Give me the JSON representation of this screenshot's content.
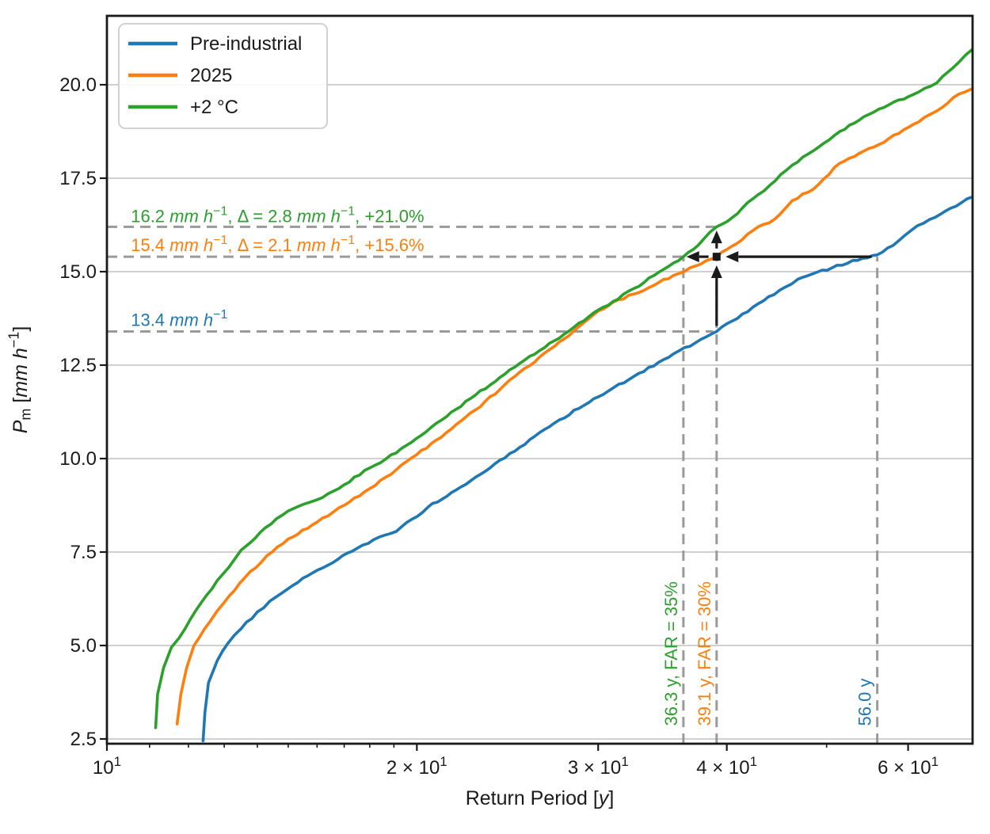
{
  "chart_data": {
    "type": "line",
    "xscale": "log",
    "xlabel": "Return Period [*y*]",
    "ylabel": "*P*_{m} [*mm h*^{−1}]",
    "xlim": [
      10,
      69.3
    ],
    "ylim": [
      2.37,
      21.84
    ],
    "grid": "horizontal",
    "grid_color": "#c9c9c9",
    "x_major_ticks": [
      {
        "v": 10,
        "label": "10^{1}"
      },
      {
        "v": 20,
        "label": "2 × 10^{1}"
      },
      {
        "v": 30,
        "label": "3 × 10^{1}"
      },
      {
        "v": 40,
        "label": "4 × 10^{1}"
      },
      {
        "v": 60,
        "label": "6 × 10^{1}"
      }
    ],
    "x_minor_ticks": [
      11,
      12,
      13,
      14,
      15,
      16,
      17,
      18,
      19,
      50
    ],
    "y_ticks": [
      {
        "v": 2.5,
        "label": "2.5"
      },
      {
        "v": 5.0,
        "label": "5.0"
      },
      {
        "v": 7.5,
        "label": "7.5"
      },
      {
        "v": 10.0,
        "label": "10.0"
      },
      {
        "v": 12.5,
        "label": "12.5"
      },
      {
        "v": 15.0,
        "label": "15.0"
      },
      {
        "v": 17.5,
        "label": "17.5"
      },
      {
        "v": 20.0,
        "label": "20.0"
      }
    ],
    "legend": {
      "position": "upper left",
      "items": [
        {
          "label": "Pre-industrial",
          "color": "#1f77b4"
        },
        {
          "label": "2025",
          "color": "#ff7f0e"
        },
        {
          "label": "+2 °C",
          "color": "#2ca02c"
        }
      ]
    },
    "series": [
      {
        "name": "Pre-industrial",
        "color": "#1f77b4",
        "points": [
          [
            12.4,
            2.45
          ],
          [
            12.45,
            3.2
          ],
          [
            12.55,
            4.0
          ],
          [
            12.8,
            4.6
          ],
          [
            13.1,
            5.05
          ],
          [
            13.5,
            5.45
          ],
          [
            14.0,
            5.9
          ],
          [
            14.6,
            6.3
          ],
          [
            15.5,
            6.8
          ],
          [
            16.4,
            7.15
          ],
          [
            17.5,
            7.6
          ],
          [
            18.6,
            7.95
          ],
          [
            19.1,
            8.05
          ],
          [
            20.5,
            8.7
          ],
          [
            22.8,
            9.5
          ],
          [
            24.9,
            10.2
          ],
          [
            27.2,
            10.95
          ],
          [
            29.7,
            11.6
          ],
          [
            32.5,
            12.2
          ],
          [
            35.5,
            12.8
          ],
          [
            37.3,
            13.1
          ],
          [
            39.1,
            13.4
          ],
          [
            42.4,
            14.05
          ],
          [
            45.0,
            14.5
          ],
          [
            46.9,
            14.8
          ],
          [
            50.6,
            15.1
          ],
          [
            53.0,
            15.3
          ],
          [
            56.0,
            15.45
          ],
          [
            58.0,
            15.7
          ],
          [
            60.4,
            16.1
          ],
          [
            63.0,
            16.4
          ],
          [
            66.0,
            16.7
          ],
          [
            69.3,
            17.0
          ]
        ]
      },
      {
        "name": "2025",
        "color": "#ff7f0e",
        "points": [
          [
            11.7,
            2.9
          ],
          [
            11.8,
            3.7
          ],
          [
            11.95,
            4.4
          ],
          [
            12.15,
            5.0
          ],
          [
            12.6,
            5.65
          ],
          [
            13.0,
            6.15
          ],
          [
            13.6,
            6.8
          ],
          [
            14.3,
            7.4
          ],
          [
            15.0,
            7.85
          ],
          [
            16.0,
            8.3
          ],
          [
            17.0,
            8.75
          ],
          [
            18.0,
            9.2
          ],
          [
            19.1,
            9.7
          ],
          [
            20.9,
            10.5
          ],
          [
            22.8,
            11.3
          ],
          [
            24.9,
            12.2
          ],
          [
            27.2,
            13.0
          ],
          [
            29.7,
            13.85
          ],
          [
            31.0,
            14.18
          ],
          [
            32.5,
            14.4
          ],
          [
            35.5,
            14.9
          ],
          [
            37.3,
            15.15
          ],
          [
            39.1,
            15.4
          ],
          [
            40.9,
            15.75
          ],
          [
            42.4,
            16.1
          ],
          [
            44.5,
            16.4
          ],
          [
            46.3,
            16.9
          ],
          [
            48.5,
            17.2
          ],
          [
            51.5,
            17.9
          ],
          [
            56.2,
            18.4
          ],
          [
            61.4,
            19.0
          ],
          [
            64.0,
            19.3
          ],
          [
            67.2,
            19.75
          ],
          [
            69.3,
            19.9
          ]
        ]
      },
      {
        "name": "+2 °C",
        "color": "#2ca02c",
        "points": [
          [
            11.15,
            2.8
          ],
          [
            11.2,
            3.7
          ],
          [
            11.35,
            4.4
          ],
          [
            11.55,
            4.95
          ],
          [
            11.75,
            5.2
          ],
          [
            12.05,
            5.7
          ],
          [
            12.5,
            6.35
          ],
          [
            12.95,
            6.9
          ],
          [
            13.5,
            7.55
          ],
          [
            14.25,
            8.15
          ],
          [
            15.0,
            8.6
          ],
          [
            16.0,
            8.9
          ],
          [
            17.0,
            9.3
          ],
          [
            18.0,
            9.75
          ],
          [
            19.1,
            10.15
          ],
          [
            20.9,
            10.95
          ],
          [
            22.8,
            11.7
          ],
          [
            24.9,
            12.45
          ],
          [
            27.2,
            13.15
          ],
          [
            29.7,
            13.9
          ],
          [
            31.0,
            14.2
          ],
          [
            32.5,
            14.55
          ],
          [
            34.0,
            14.9
          ],
          [
            36.3,
            15.4
          ],
          [
            37.5,
            15.7
          ],
          [
            38.5,
            16.05
          ],
          [
            39.1,
            16.2
          ],
          [
            40.5,
            16.45
          ],
          [
            42.4,
            16.95
          ],
          [
            44.0,
            17.3
          ],
          [
            46.3,
            17.85
          ],
          [
            48.0,
            18.15
          ],
          [
            51.5,
            18.75
          ],
          [
            56.2,
            19.35
          ],
          [
            61.4,
            19.8
          ],
          [
            64.0,
            20.05
          ],
          [
            67.2,
            20.6
          ],
          [
            69.3,
            20.95
          ]
        ]
      }
    ],
    "annotations": {
      "dash_color": "#9a9a9a",
      "hlines": [
        {
          "y": 16.2,
          "x0": 10,
          "x1": 39.5
        },
        {
          "y": 15.4,
          "x0": 10,
          "x1": 36.4
        },
        {
          "y": 13.4,
          "x0": 10,
          "x1": 38.8
        }
      ],
      "vlines": [
        {
          "x": 36.3,
          "y0": 2.37,
          "y1": 15.4
        },
        {
          "x": 39.1,
          "y0": 2.37,
          "y1": 15.4
        },
        {
          "x": 56.0,
          "y0": 2.37,
          "y1": 15.4
        }
      ],
      "texts": [
        {
          "text": "16.2 *mm h*^{−1}, Δ = 2.8 *mm h*^{−1}, +21.0%",
          "color": "#2ca02c",
          "x": 10.55,
          "y": 16.32,
          "rotate": 0
        },
        {
          "text": "15.4 *mm h*^{−1}, Δ = 2.1 *mm h*^{−1}, +15.6%",
          "color": "#ff7f0e",
          "x": 10.55,
          "y": 15.55,
          "rotate": 0
        },
        {
          "text": "13.4 *mm h*^{−1}",
          "color": "#1f77b4",
          "x": 10.55,
          "y": 13.55,
          "rotate": 0
        },
        {
          "text": "36.3 y, FAR = 35%",
          "color": "#2ca02c",
          "x": 36.3,
          "y": 2.85,
          "rotate": -90
        },
        {
          "text": "39.1 y, FAR = 30%",
          "color": "#ff7f0e",
          "x": 39.1,
          "y": 2.85,
          "rotate": -90
        },
        {
          "text": "56.0 y",
          "color": "#1f77b4",
          "x": 56.0,
          "y": 2.85,
          "rotate": -90
        }
      ],
      "arrows": [
        {
          "x0": 55.3,
          "y0": 15.4,
          "x1": 39.9,
          "y1": 15.4
        },
        {
          "x0": 38.4,
          "y0": 15.4,
          "x1": 36.55,
          "y1": 15.4
        },
        {
          "x0": 39.1,
          "y0": 13.55,
          "x1": 39.1,
          "y1": 15.17
        },
        {
          "x0": 39.1,
          "y0": 15.62,
          "x1": 39.1,
          "y1": 16.1
        }
      ],
      "marker": {
        "x": 39.1,
        "y": 15.4,
        "color": "#1a1a1a"
      }
    }
  }
}
